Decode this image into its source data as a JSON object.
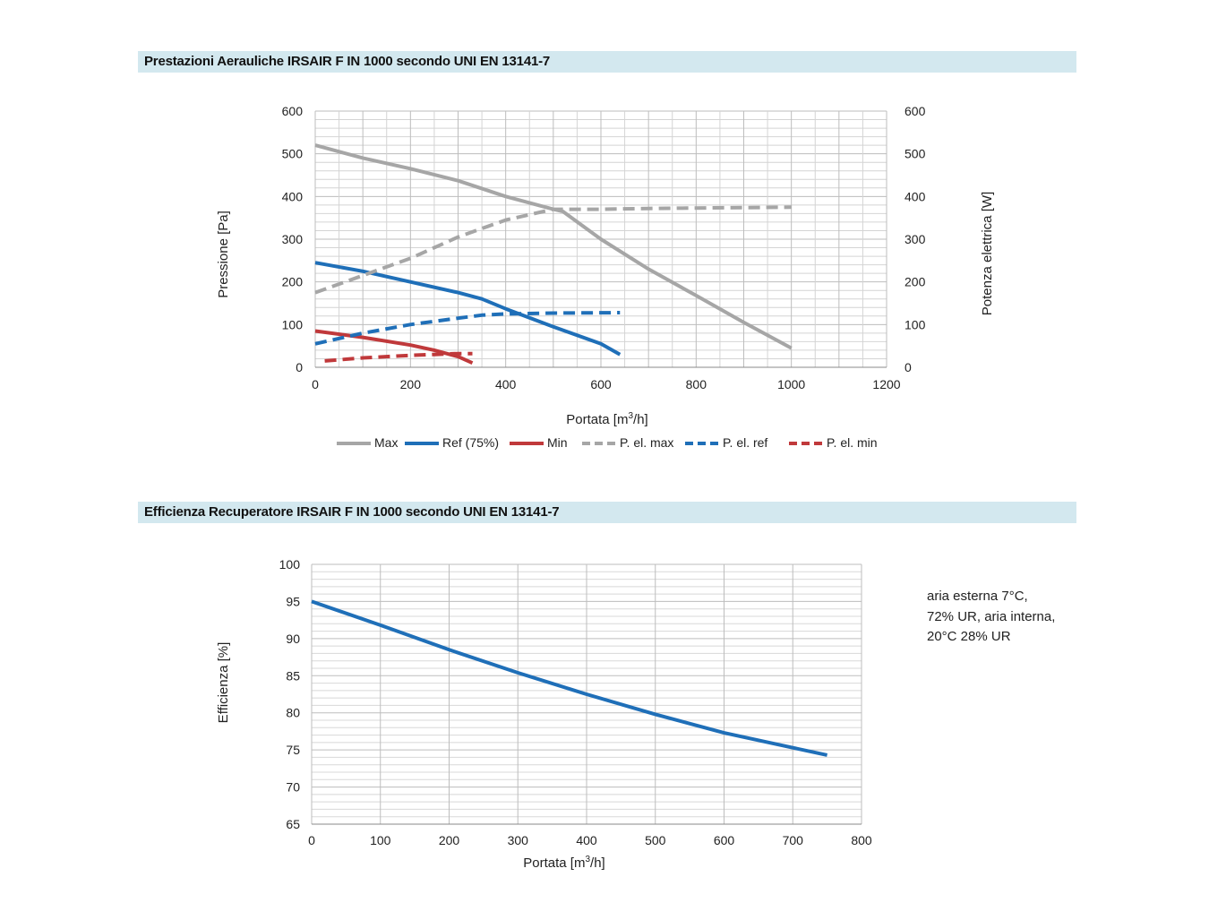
{
  "charts": {
    "aeraulic": {
      "header": "Prestazioni Aerauliche IRSAIR F IN 1000 secondo UNI EN 13141-7",
      "ylabel_left": "Pressione [Pa]",
      "ylabel_right": "Potenza elettrica [W]",
      "xlabel_main": "Portata [m",
      "xlabel_sup": "3",
      "xlabel_tail": "/h]",
      "x_ticks": [
        "0",
        "200",
        "400",
        "600",
        "800",
        "1000",
        "1200"
      ],
      "y_left_ticks": [
        "0",
        "100",
        "200",
        "300",
        "400",
        "500",
        "600"
      ],
      "y_right_ticks": [
        "0",
        "100",
        "200",
        "300",
        "400",
        "500",
        "600"
      ],
      "legend": [
        "Max",
        "Ref (75%)",
        "Min",
        "P. el. max",
        "P. el. ref",
        "P. el. min"
      ]
    },
    "efficiency": {
      "header": "Efficienza Recuperatore IRSAIR F IN 1000 secondo UNI EN 13141-7",
      "ylabel": "Efficienza [%]",
      "xlabel_main": "Portata [m",
      "xlabel_sup": "3",
      "xlabel_tail": "/h]",
      "x_ticks": [
        "0",
        "100",
        "200",
        "300",
        "400",
        "500",
        "600",
        "700",
        "800"
      ],
      "y_ticks": [
        "65",
        "70",
        "75",
        "80",
        "85",
        "90",
        "95",
        "100"
      ],
      "note": [
        "aria esterna 7°C,",
        "72% UR, aria interna,",
        "20°C 28% UR"
      ]
    }
  },
  "chart_data": [
    {
      "type": "line",
      "title": "Prestazioni Aerauliche IRSAIR F IN 1000 secondo UNI EN 13141-7",
      "xlabel": "Portata [m3/h]",
      "ylabel": "Pressione [Pa]",
      "y2label": "Potenza elettrica [W]",
      "xlim": [
        0,
        1200
      ],
      "ylim": [
        0,
        600
      ],
      "y2lim": [
        0,
        600
      ],
      "grid": true,
      "legend_position": "bottom",
      "series": [
        {
          "name": "Max",
          "axis": "left",
          "color": "#a6a6a6",
          "dash": false,
          "x": [
            0,
            100,
            200,
            300,
            400,
            500,
            520,
            600,
            700,
            800,
            900,
            1000
          ],
          "y": [
            520,
            490,
            465,
            437,
            400,
            370,
            365,
            300,
            230,
            168,
            105,
            45
          ]
        },
        {
          "name": "Ref (75%)",
          "axis": "left",
          "color": "#1f6fb8",
          "dash": false,
          "x": [
            0,
            100,
            200,
            300,
            350,
            400,
            500,
            600,
            640
          ],
          "y": [
            245,
            225,
            200,
            175,
            160,
            137,
            95,
            55,
            30
          ]
        },
        {
          "name": "Min",
          "axis": "left",
          "color": "#c0393b",
          "dash": false,
          "x": [
            0,
            100,
            200,
            250,
            300,
            330
          ],
          "y": [
            85,
            70,
            52,
            40,
            25,
            10
          ]
        },
        {
          "name": "P. el. max",
          "axis": "right",
          "color": "#a6a6a6",
          "dash": true,
          "x": [
            0,
            100,
            200,
            300,
            400,
            500,
            600,
            700,
            800,
            1000
          ],
          "y": [
            175,
            215,
            255,
            305,
            345,
            370,
            370,
            372,
            373,
            375
          ]
        },
        {
          "name": "P. el. ref",
          "axis": "right",
          "color": "#1f6fb8",
          "dash": true,
          "x": [
            0,
            100,
            200,
            300,
            350,
            400,
            500,
            640
          ],
          "y": [
            55,
            80,
            100,
            115,
            122,
            125,
            127,
            128
          ]
        },
        {
          "name": "P. el. min",
          "axis": "right",
          "color": "#c0393b",
          "dash": true,
          "x": [
            20,
            100,
            200,
            250,
            300,
            330
          ],
          "y": [
            15,
            22,
            28,
            30,
            32,
            32
          ]
        }
      ]
    },
    {
      "type": "line",
      "title": "Efficienza Recuperatore IRSAIR F IN 1000 secondo UNI EN 13141-7",
      "xlabel": "Portata [m3/h]",
      "ylabel": "Efficienza [%]",
      "xlim": [
        0,
        800
      ],
      "ylim": [
        65,
        100
      ],
      "grid": true,
      "series": [
        {
          "name": "Efficienza",
          "color": "#1f6fb8",
          "dash": false,
          "x": [
            0,
            100,
            200,
            300,
            400,
            500,
            600,
            700,
            750
          ],
          "y": [
            95,
            91.8,
            88.5,
            85.4,
            82.5,
            79.8,
            77.3,
            75.3,
            74.3
          ]
        }
      ]
    }
  ]
}
